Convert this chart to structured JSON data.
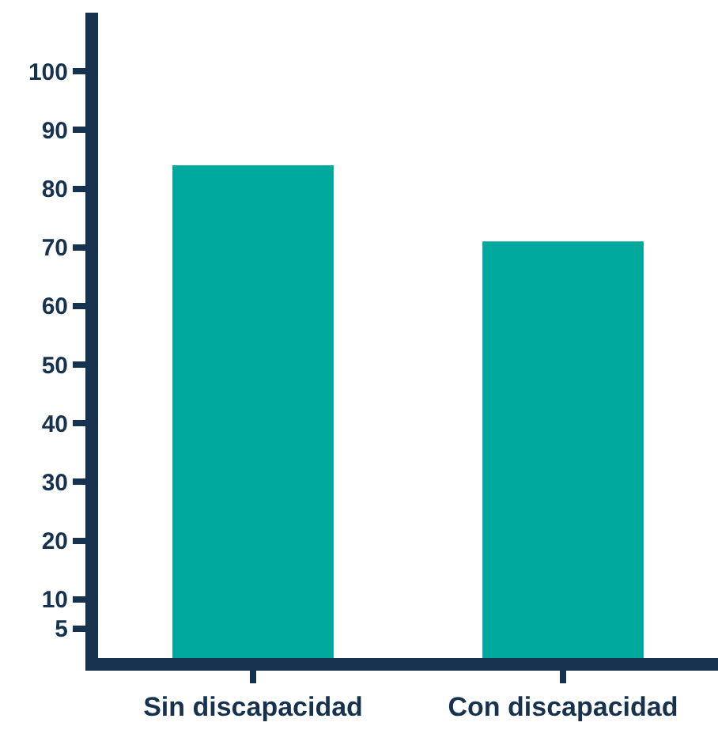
{
  "chart_data": {
    "type": "bar",
    "categories": [
      "Sin discapacidad",
      "Con discapacidad"
    ],
    "values": [
      84,
      71
    ],
    "color": "#00a99d",
    "ylim": [
      0,
      110
    ],
    "yticks": [
      5,
      10,
      20,
      30,
      40,
      50,
      60,
      70,
      80,
      90,
      100
    ],
    "grid": false,
    "legend": false
  }
}
